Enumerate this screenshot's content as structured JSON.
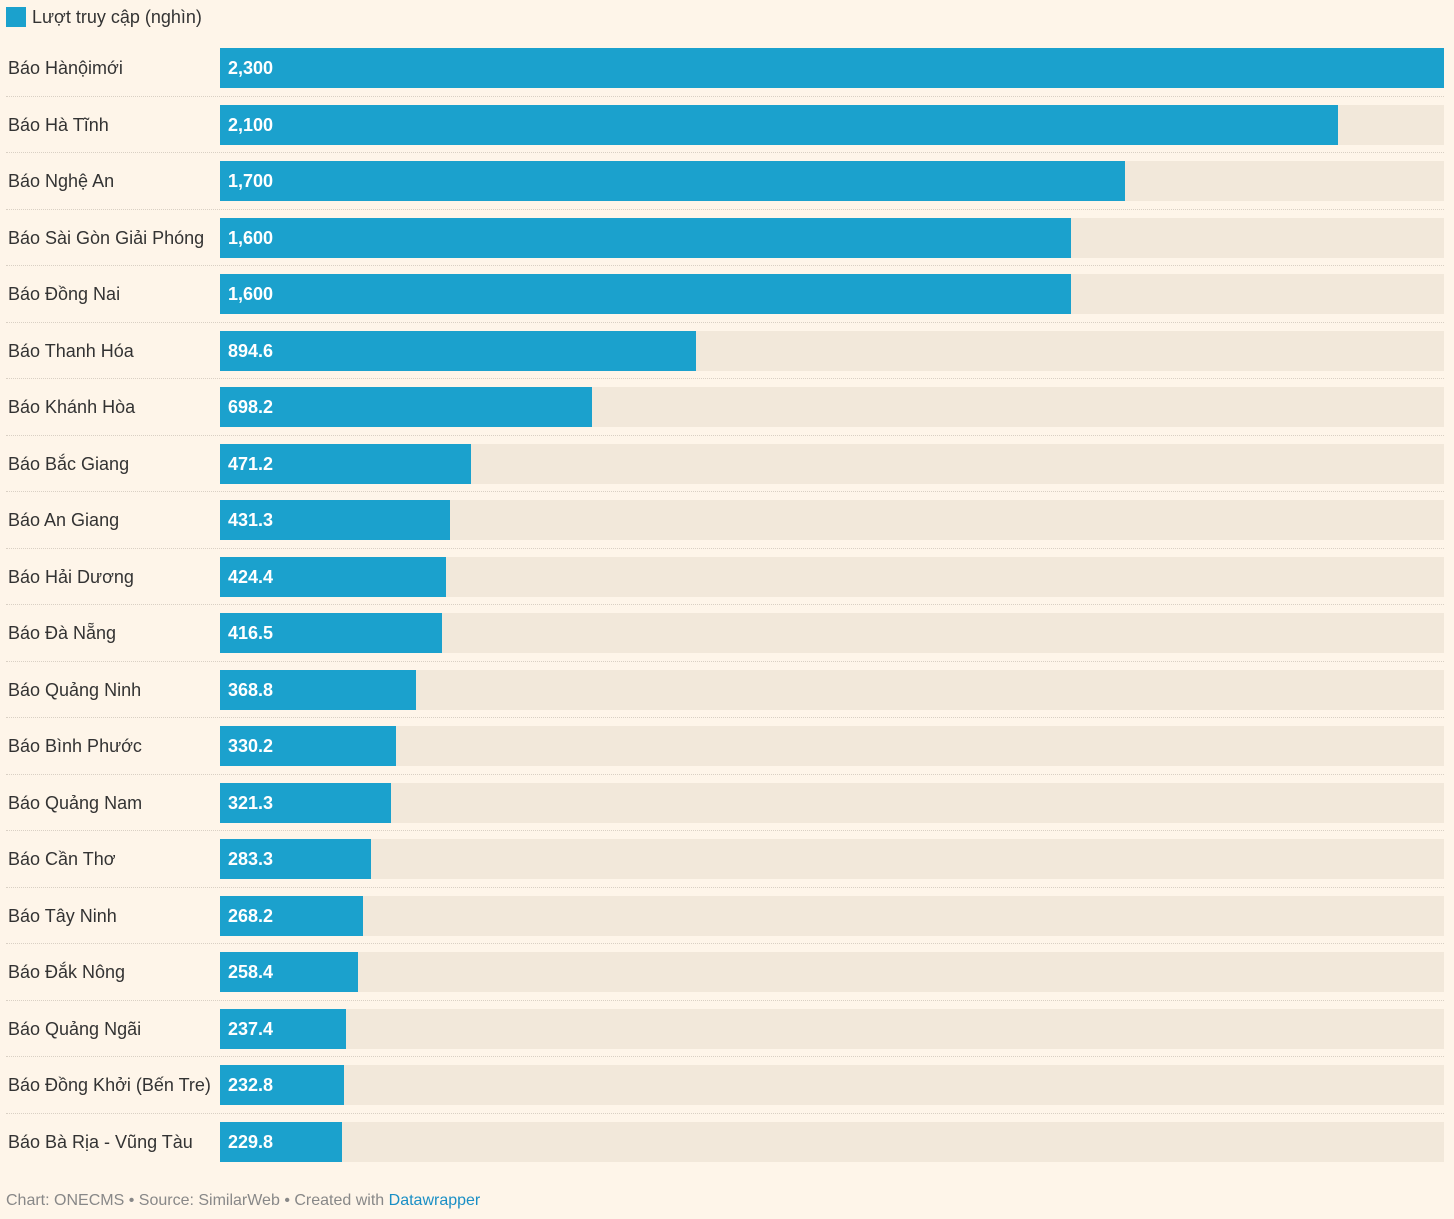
{
  "chart_data": {
    "type": "bar",
    "orientation": "horizontal",
    "legend": "Lượt truy cập (nghìn)",
    "series_color": "#1ba1cd",
    "xlim": [
      0,
      2300
    ],
    "categories": [
      "Báo Hànộimới",
      "Báo Hà Tĩnh",
      "Báo Nghệ An",
      "Báo Sài Gòn Giải Phóng",
      "Báo Đồng Nai",
      "Báo Thanh Hóa",
      "Báo Khánh Hòa",
      "Báo Bắc Giang",
      "Báo An Giang",
      "Báo Hải Dương",
      "Báo Đà Nẵng",
      "Báo Quảng Ninh",
      "Báo Bình Phước",
      "Báo Quảng Nam",
      "Báo Cần Thơ",
      "Báo Tây Ninh",
      "Báo Đắk Nông",
      "Báo Quảng Ngãi",
      "Báo Đồng Khởi (Bến Tre)",
      "Báo Bà Rịa - Vũng Tàu"
    ],
    "values": [
      2300,
      2100,
      1700,
      1600,
      1600,
      894.6,
      698.2,
      471.2,
      431.3,
      424.4,
      416.5,
      368.8,
      330.2,
      321.3,
      283.3,
      268.2,
      258.4,
      237.4,
      232.8,
      229.8
    ],
    "value_labels": [
      "2,300",
      "2,100",
      "1,700",
      "1,600",
      "1,600",
      "894.6",
      "698.2",
      "471.2",
      "431.3",
      "424.4",
      "416.5",
      "368.8",
      "330.2",
      "321.3",
      "283.3",
      "268.2",
      "258.4",
      "237.4",
      "232.8",
      "229.8"
    ]
  },
  "footer": {
    "chart_credit": "Chart: ONECMS",
    "separator": "•",
    "source": "Source: SimilarWeb",
    "created_with": "Created with",
    "tool_link": "Datawrapper"
  }
}
